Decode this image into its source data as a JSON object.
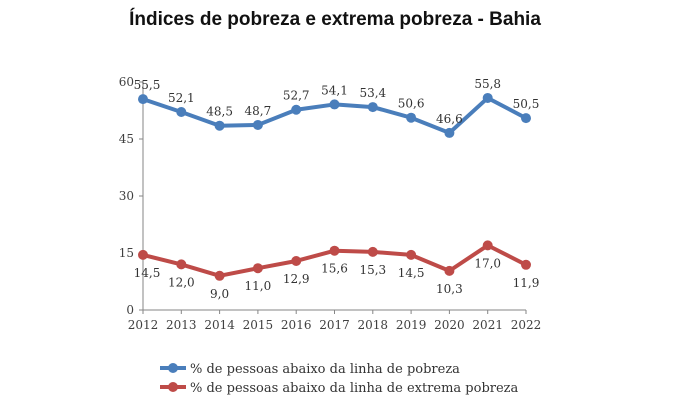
{
  "chart_data": {
    "type": "line",
    "title": "Índices de pobreza e extrema pobreza - Bahia",
    "xlabel": "",
    "ylabel": "",
    "x": [
      "2012",
      "2013",
      "2014",
      "2015",
      "2016",
      "2017",
      "2018",
      "2019",
      "2020",
      "2021",
      "2022"
    ],
    "ylim": [
      0,
      60
    ],
    "yticks": [
      "0",
      "15",
      "30",
      "45",
      "60"
    ],
    "grid": false,
    "legend_position": "bottom",
    "series": [
      {
        "name": "% de pessoas abaixo da linha de pobreza",
        "color": "#4A7EBB",
        "values": [
          55.5,
          52.1,
          48.5,
          48.7,
          52.7,
          54.1,
          53.4,
          50.6,
          46.6,
          55.8,
          50.5
        ],
        "labels": [
          "55,5",
          "52,1",
          "48,5",
          "48,7",
          "52,7",
          "54,1",
          "53,4",
          "50,6",
          "46,6",
          "55,8",
          "50,5"
        ]
      },
      {
        "name": "% de pessoas abaixo da linha de extrema pobreza",
        "color": "#BE4B48",
        "values": [
          14.5,
          12.0,
          9.0,
          11.0,
          12.9,
          15.6,
          15.3,
          14.5,
          10.3,
          17.0,
          11.9
        ],
        "labels": [
          "14,5",
          "12,0",
          "9,0",
          "11,0",
          "12,9",
          "15,6",
          "15,3",
          "14,5",
          "10,3",
          "17,0",
          "11,9"
        ]
      }
    ]
  }
}
